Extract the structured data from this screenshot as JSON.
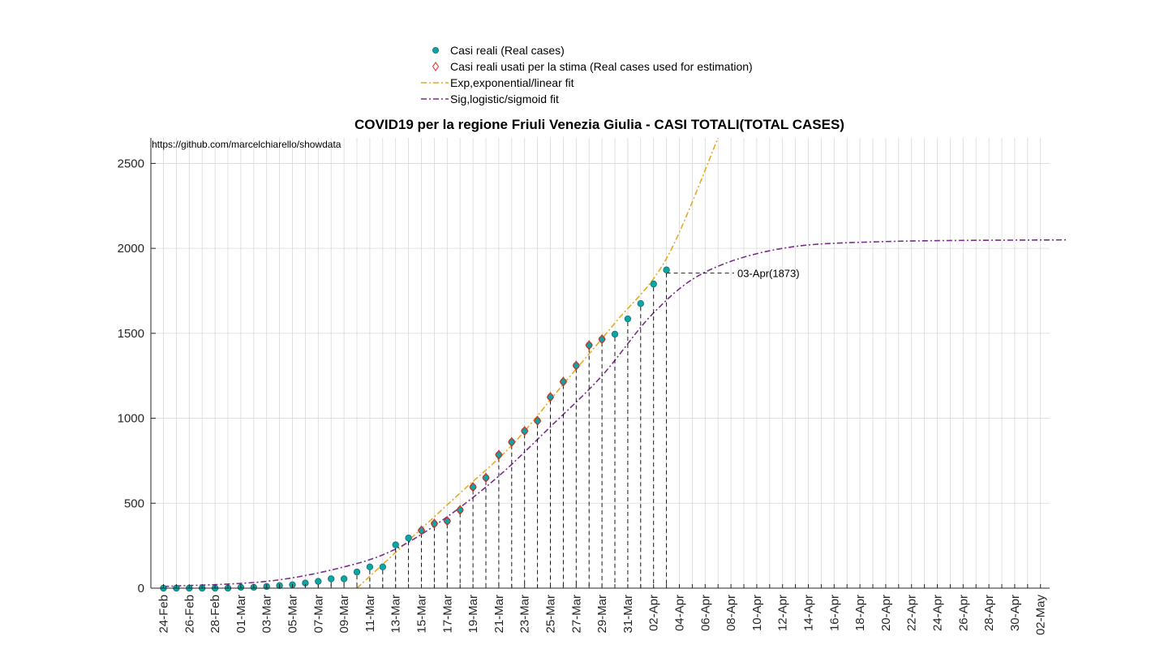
{
  "chart_data": {
    "type": "scatter",
    "title": "COVID19 per la regione Friuli Venezia Giulia - CASI TOTALI(TOTAL CASES)",
    "source_text": "https://github.com/marcelchiarello/showdata",
    "xlabel": "",
    "ylabel": "",
    "ylim": [
      0,
      2650
    ],
    "yticks": [
      0,
      500,
      1000,
      1500,
      2000,
      2500
    ],
    "x_start_date": "24-Feb",
    "x_end_date": "04-May",
    "xtick_labels": [
      "24-Feb",
      "26-Feb",
      "28-Feb",
      "01-Mar",
      "03-Mar",
      "05-Mar",
      "07-Mar",
      "09-Mar",
      "11-Mar",
      "13-Mar",
      "15-Mar",
      "17-Mar",
      "19-Mar",
      "21-Mar",
      "23-Mar",
      "25-Mar",
      "27-Mar",
      "29-Mar",
      "31-Mar",
      "02-Apr",
      "04-Apr",
      "06-Apr",
      "08-Apr",
      "10-Apr",
      "12-Apr",
      "14-Apr",
      "16-Apr",
      "18-Apr",
      "20-Apr",
      "22-Apr",
      "24-Apr",
      "26-Apr",
      "28-Apr",
      "30-Apr",
      "02-May"
    ],
    "grid": true,
    "legend_position": "top",
    "legend": [
      {
        "label": "Casi reali (Real cases)",
        "marker": "circle",
        "color": "#0aa5a5"
      },
      {
        "label": "Casi reali usati per la stima (Real cases used for estimation)",
        "marker": "diamond",
        "color": "#e8261d"
      },
      {
        "label": "Exp,exponential/linear fit",
        "marker": "dashdot",
        "color": "#e6a91f"
      },
      {
        "label": "Sig,logistic/sigmoid fit",
        "marker": "dashdot",
        "color": "#7a2d8c"
      }
    ],
    "series": [
      {
        "name": "Casi reali (Real cases)",
        "dates": [
          "24-Feb",
          "25-Feb",
          "26-Feb",
          "27-Feb",
          "28-Feb",
          "29-Feb",
          "01-Mar",
          "02-Mar",
          "03-Mar",
          "04-Mar",
          "05-Mar",
          "06-Mar",
          "07-Mar",
          "08-Mar",
          "09-Mar",
          "10-Mar",
          "11-Mar",
          "12-Mar",
          "13-Mar",
          "14-Mar",
          "15-Mar",
          "16-Mar",
          "17-Mar",
          "18-Mar",
          "19-Mar",
          "20-Mar",
          "21-Mar",
          "22-Mar",
          "23-Mar",
          "24-Mar",
          "25-Mar",
          "26-Mar",
          "27-Mar",
          "28-Mar",
          "29-Mar",
          "30-Mar",
          "31-Mar",
          "01-Apr",
          "02-Apr",
          "03-Apr"
        ],
        "values": [
          0,
          0,
          0,
          0,
          0,
          0,
          5,
          5,
          10,
          15,
          20,
          30,
          40,
          55,
          55,
          95,
          125,
          125,
          255,
          295,
          340,
          380,
          395,
          460,
          595,
          650,
          785,
          860,
          925,
          985,
          1125,
          1215,
          1310,
          1430,
          1465,
          1495,
          1585,
          1675,
          1790,
          1873
        ]
      },
      {
        "name": "Casi reali usati per la stima (Real cases used for estimation)",
        "dates": [
          "15-Mar",
          "16-Mar",
          "17-Mar",
          "18-Mar",
          "19-Mar",
          "20-Mar",
          "21-Mar",
          "22-Mar",
          "23-Mar",
          "24-Mar",
          "25-Mar",
          "26-Mar",
          "27-Mar",
          "28-Mar",
          "29-Mar"
        ],
        "values": [
          340,
          380,
          395,
          460,
          595,
          650,
          785,
          860,
          925,
          985,
          1125,
          1215,
          1310,
          1430,
          1465
        ]
      },
      {
        "name": "Exp,exponential/linear fit",
        "dates": [
          "10-Mar",
          "14-Mar",
          "18-Mar",
          "22-Mar",
          "26-Mar",
          "30-Mar",
          "03-Apr",
          "07-Apr"
        ],
        "values": [
          0,
          280,
          560,
          840,
          1200,
          1560,
          1940,
          2650
        ]
      },
      {
        "name": "Sig,logistic/sigmoid fit",
        "dates": [
          "24-Feb",
          "03-Mar",
          "09-Mar",
          "13-Mar",
          "17-Mar",
          "21-Mar",
          "25-Mar",
          "29-Mar",
          "02-Apr",
          "06-Apr",
          "12-Apr",
          "20-Apr",
          "04-May"
        ],
        "values": [
          10,
          40,
          125,
          230,
          420,
          660,
          950,
          1250,
          1620,
          1860,
          2000,
          2040,
          2050
        ]
      }
    ],
    "annotations": [
      {
        "text": "03-Apr(1873)",
        "date": "03-Apr",
        "value": 1873
      }
    ]
  }
}
